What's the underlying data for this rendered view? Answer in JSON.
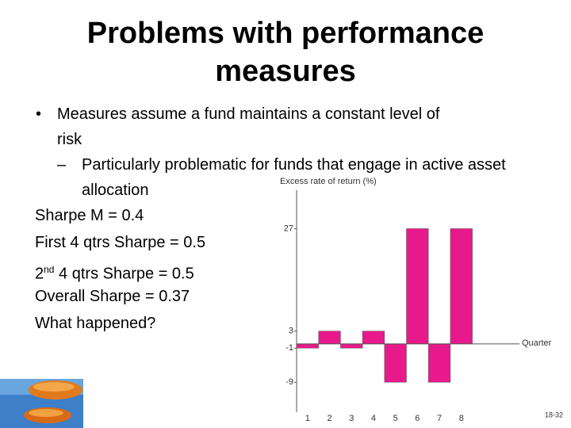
{
  "slide": {
    "title": "Problems with performance measures",
    "bullet": "Measures assume a fund maintains a constant level of risk",
    "sub_bullet": "Particularly problematic for funds that engage in active asset allocation",
    "lines": [
      "Sharpe M = 0.4",
      "First 4 qtrs Sharpe = 0.5"
    ],
    "second_half": {
      "base": "2",
      "superscript": "nd",
      "rest": "4 qtrs Sharpe = 0.5"
    },
    "closing_lines": [
      "Overall Sharpe = 0.37",
      "What happened?"
    ],
    "page_number": "18-32"
  },
  "chart_data": {
    "type": "bar",
    "y_label": "Excess rate of return (%)",
    "x_label": "Quarter",
    "categories": [
      "1",
      "2",
      "3",
      "4",
      "5",
      "6",
      "7",
      "8"
    ],
    "values": [
      -1,
      3,
      -1,
      3,
      -9,
      27,
      -9,
      27
    ],
    "color": "#e8198b",
    "ylim": [
      -16,
      36
    ],
    "yticks": [
      -9,
      -1,
      3,
      27
    ]
  }
}
